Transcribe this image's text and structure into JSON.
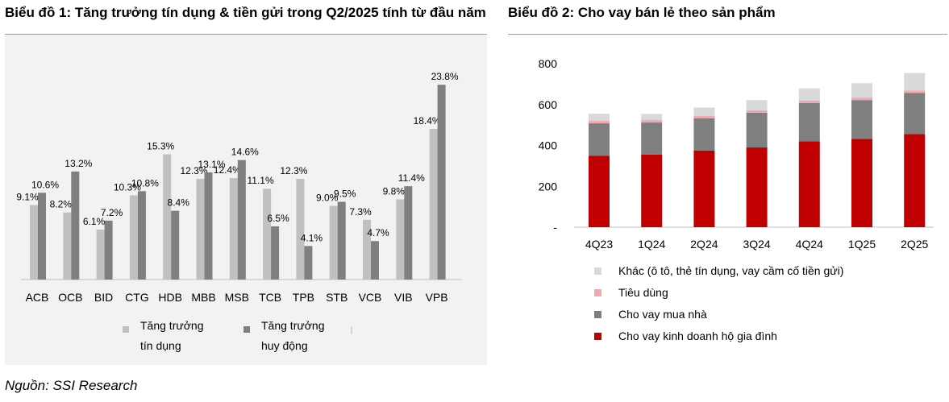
{
  "source": "Nguồn: SSI Research",
  "chart_data": [
    {
      "type": "bar",
      "title": "Biểu đồ 1: Tăng trưởng tín dụng & tiền gửi trong Q2/2025 tính từ đầu năm",
      "categories": [
        "ACB",
        "OCB",
        "BID",
        "CTG",
        "HDB",
        "MBB",
        "MSB",
        "TCB",
        "TPB",
        "STB",
        "VCB",
        "VIB",
        "VPB"
      ],
      "series": [
        {
          "name": "Tăng trưởng tín dụng",
          "color": "#c0c0c0",
          "values": [
            9.1,
            8.2,
            6.1,
            10.3,
            15.3,
            12.3,
            12.4,
            11.1,
            12.3,
            9.0,
            7.3,
            9.8,
            18.4
          ],
          "labels": [
            "9.1%",
            "8.2%",
            "6.1%",
            "10.3%",
            "15.3%",
            "12.3%",
            "12.4%",
            "11.1%",
            "12.3%",
            "9.0%",
            "7.3%",
            "9.8%",
            "18.4%"
          ]
        },
        {
          "name": "Tăng trưởng huy động",
          "color": "#7f7f7f",
          "values": [
            10.6,
            13.2,
            7.2,
            10.8,
            8.4,
            13.1,
            14.6,
            6.5,
            4.1,
            9.5,
            4.7,
            11.4,
            23.8
          ],
          "labels": [
            "10.6%",
            "13.2%",
            "7.2%",
            "10.8%",
            "8.4%",
            "13.1%",
            "14.6%",
            "6.5%",
            "4.1%",
            "9.5%",
            "4.7%",
            "11.4%",
            "23.8%"
          ]
        }
      ],
      "legend": [
        {
          "line1": "Tăng trưởng",
          "line2": "tín dụng"
        },
        {
          "line1": "Tăng trưởng",
          "line2": "huy động"
        }
      ],
      "ylim": [
        0,
        25
      ],
      "legend_position": "bottom"
    },
    {
      "type": "bar",
      "stacked": true,
      "title": "Biểu đồ 2: Cho vay bán lẻ theo sản phẩm",
      "categories": [
        "4Q23",
        "1Q24",
        "2Q24",
        "3Q24",
        "4Q24",
        "1Q25",
        "2Q25"
      ],
      "yticks": [
        "-",
        "200",
        "400",
        "600",
        "800"
      ],
      "ylim": [
        0,
        800
      ],
      "series": [
        {
          "name": "Cho vay kinh doanh hộ gia đình",
          "color": "#c00000",
          "values": [
            350,
            355,
            375,
            390,
            420,
            432,
            455
          ]
        },
        {
          "name": "Cho vay mua nhà",
          "color": "#7f7f7f",
          "values": [
            158,
            157,
            158,
            170,
            187,
            190,
            202
          ]
        },
        {
          "name": "Tiêu dùng",
          "color": "#f4a6b1",
          "values": [
            12,
            12,
            12,
            12,
            12,
            12,
            12
          ]
        },
        {
          "name": "Khác (ô tô, thẻ tín dụng, vay cầm cố tiền gửi)",
          "color": "#d9d9d9",
          "values": [
            35,
            30,
            40,
            50,
            60,
            70,
            85
          ]
        }
      ],
      "legend_order": [
        "Khác (ô tô, thẻ tín dụng, vay cầm cố tiền gửi)",
        "Tiêu dùng",
        "Cho vay mua nhà",
        "Cho vay kinh doanh hộ gia đình"
      ],
      "legend_position": "bottom"
    }
  ]
}
